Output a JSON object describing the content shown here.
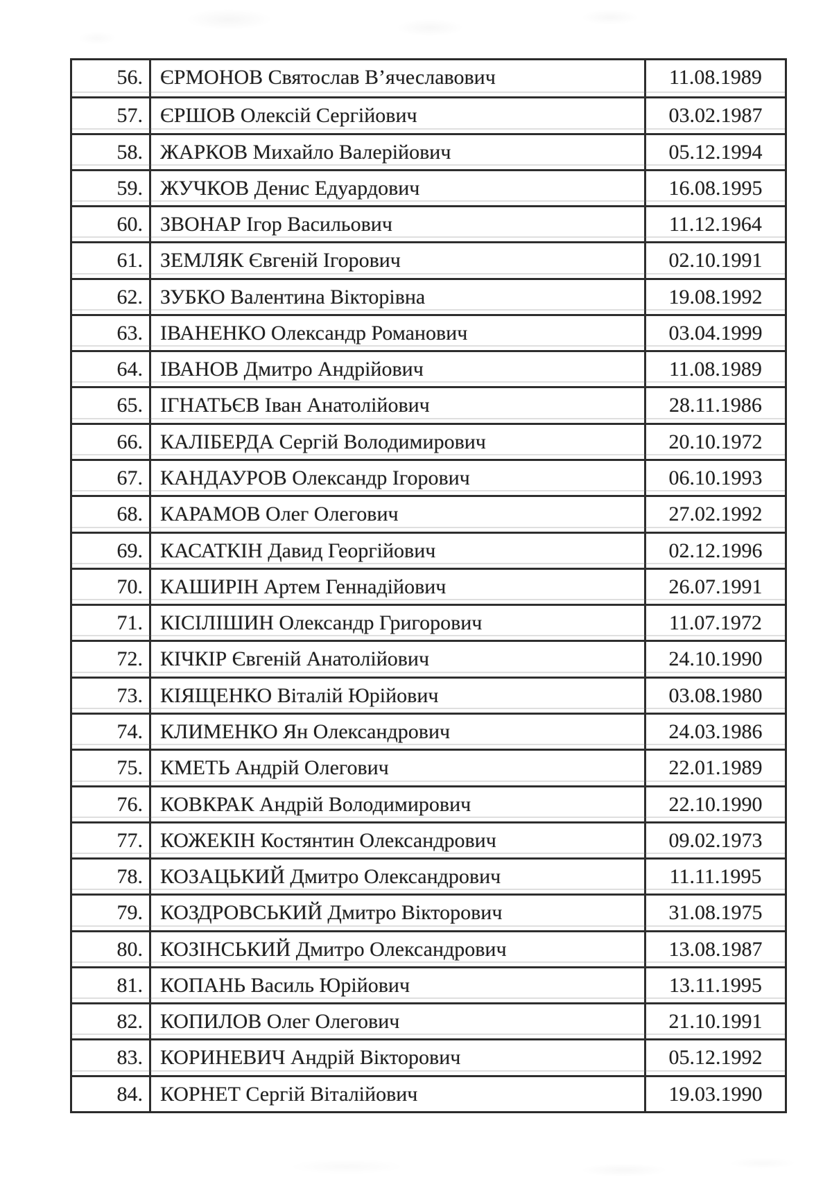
{
  "document": {
    "kind": "scanned-list-page",
    "language": "uk"
  },
  "colors": {
    "page_bg": "#ffffff",
    "text": "#1f1f1f",
    "border": "#2e2e2e"
  },
  "table": {
    "rows": [
      {
        "num": "56.",
        "name": "ЄРМОНОВ Святослав В’ячеславович",
        "date": "11.08.1989"
      },
      {
        "num": "57.",
        "name": "ЄРШОВ Олексій Сергійович",
        "date": "03.02.1987"
      },
      {
        "num": "58.",
        "name": "ЖАРКОВ Михайло Валерійович",
        "date": "05.12.1994"
      },
      {
        "num": "59.",
        "name": "ЖУЧКОВ Денис Едуардович",
        "date": "16.08.1995"
      },
      {
        "num": "60.",
        "name": "ЗВОНАР Ігор Васильович",
        "date": "11.12.1964"
      },
      {
        "num": "61.",
        "name": "ЗЕМЛЯК Євгеній Ігорович",
        "date": "02.10.1991"
      },
      {
        "num": "62.",
        "name": "ЗУБКО Валентина Вікторівна",
        "date": "19.08.1992"
      },
      {
        "num": "63.",
        "name": "ІВАНЕНКО Олександр Романович",
        "date": "03.04.1999"
      },
      {
        "num": "64.",
        "name": "ІВАНОВ Дмитро Андрійович",
        "date": "11.08.1989"
      },
      {
        "num": "65.",
        "name": "ІГНАТЬЄВ Іван Анатолійович",
        "date": "28.11.1986"
      },
      {
        "num": "66.",
        "name": "КАЛІБЕРДА Сергій Володимирович",
        "date": "20.10.1972"
      },
      {
        "num": "67.",
        "name": "КАНДАУРОВ Олександр Ігорович",
        "date": "06.10.1993"
      },
      {
        "num": "68.",
        "name": "КАРАМОВ Олег Олегович",
        "date": "27.02.1992"
      },
      {
        "num": "69.",
        "name": "КАСАТКІН Давид Георгійович",
        "date": "02.12.1996"
      },
      {
        "num": "70.",
        "name": "КАШИРІН Артем Геннадійович",
        "date": "26.07.1991"
      },
      {
        "num": "71.",
        "name": "КІСІЛІШИН Олександр Григорович",
        "date": "11.07.1972"
      },
      {
        "num": "72.",
        "name": "КІЧКІР Євгеній Анатолійович",
        "date": "24.10.1990"
      },
      {
        "num": "73.",
        "name": "КІЯЩЕНКО Віталій Юрійович",
        "date": "03.08.1980"
      },
      {
        "num": "74.",
        "name": "КЛИМЕНКО Ян Олександрович",
        "date": "24.03.1986"
      },
      {
        "num": "75.",
        "name": "КМЕТЬ Андрій Олегович",
        "date": "22.01.1989"
      },
      {
        "num": "76.",
        "name": "КОВКРАК Андрій Володимирович",
        "date": "22.10.1990"
      },
      {
        "num": "77.",
        "name": "КОЖЕКІН Костянтин Олександрович",
        "date": "09.02.1973"
      },
      {
        "num": "78.",
        "name": "КОЗАЦЬКИЙ Дмитро Олександрович",
        "date": "11.11.1995"
      },
      {
        "num": "79.",
        "name": "КОЗДРОВСЬКИЙ Дмитро Вікторович",
        "date": "31.08.1975"
      },
      {
        "num": "80.",
        "name": "КОЗІНСЬКИЙ Дмитро Олександрович",
        "date": "13.08.1987"
      },
      {
        "num": "81.",
        "name": "КОПАНЬ Василь Юрійович",
        "date": "13.11.1995"
      },
      {
        "num": "82.",
        "name": "КОПИЛОВ Олег Олегович",
        "date": "21.10.1991"
      },
      {
        "num": "83.",
        "name": "КОРИНЕВИЧ Андрій Вікторович",
        "date": "05.12.1992"
      },
      {
        "num": "84.",
        "name": "КОРНЕТ Сергій Віталійович",
        "date": "19.03.1990"
      }
    ]
  }
}
